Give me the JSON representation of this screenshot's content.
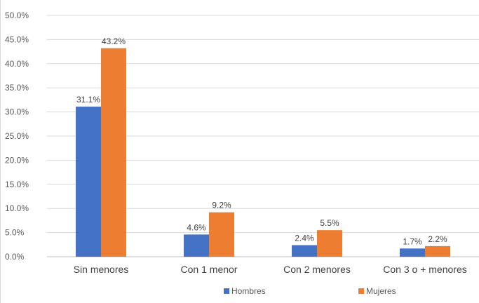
{
  "chart_data": {
    "type": "bar",
    "categories": [
      "Sin menores",
      "Con 1 menor",
      "Con 2 menores",
      "Con 3 o + menores"
    ],
    "series": [
      {
        "name": "Hombres",
        "color": "#4472c4",
        "values": [
          31.1,
          4.6,
          2.4,
          1.7
        ],
        "labels": [
          "31.1%",
          "4.6%",
          "2.4%",
          "1.7%"
        ]
      },
      {
        "name": "Mujeres",
        "color": "#ed7d31",
        "values": [
          43.2,
          9.2,
          5.5,
          2.2
        ],
        "labels": [
          "43.2%",
          "9.2%",
          "5.5%",
          "2.2%"
        ]
      }
    ],
    "ylim": [
      0,
      50
    ],
    "yticks": [
      0,
      5,
      10,
      15,
      20,
      25,
      30,
      35,
      40,
      45,
      50
    ],
    "ytick_labels": [
      "0.0%",
      "5.0%",
      "10.0%",
      "15.0%",
      "20.0%",
      "25.0%",
      "30.0%",
      "35.0%",
      "40.0%",
      "45.0%",
      "50.0%"
    ],
    "grid": true,
    "legend_position": "bottom"
  }
}
